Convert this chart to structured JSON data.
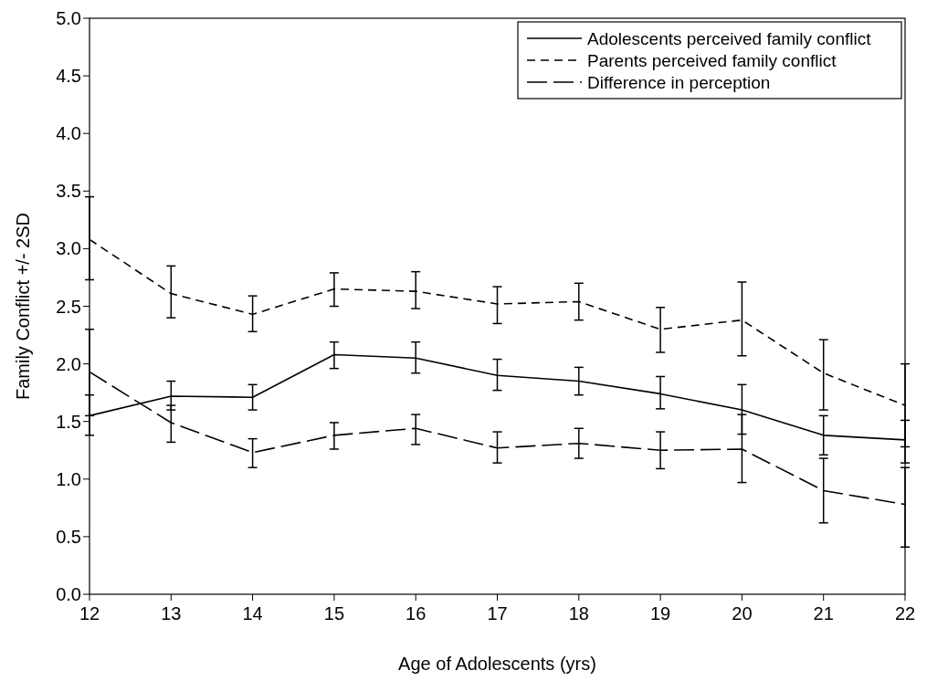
{
  "chart_data": {
    "type": "line",
    "xlabel": "Age of Adolescents (yrs)",
    "ylabel": "Family Conflict +/- 2SD",
    "x": [
      12,
      13,
      14,
      15,
      16,
      17,
      18,
      19,
      20,
      21,
      22
    ],
    "xlim": [
      12,
      22
    ],
    "xticks": [
      12,
      13,
      14,
      15,
      16,
      17,
      18,
      19,
      20,
      21,
      22
    ],
    "ylim": [
      0,
      5
    ],
    "yticks": [
      {
        "value": 0,
        "label": "0.0"
      },
      {
        "value": 0.5,
        "label": "0.5"
      },
      {
        "value": 1,
        "label": "1.0"
      },
      {
        "value": 1.5,
        "label": "1.5"
      },
      {
        "value": 2,
        "label": "2.0"
      },
      {
        "value": 2.5,
        "label": "2.5"
      },
      {
        "value": 3,
        "label": "3.0"
      },
      {
        "value": 3.5,
        "label": "3.5"
      },
      {
        "value": 4,
        "label": "4.0"
      },
      {
        "value": 4.5,
        "label": "4.5"
      },
      {
        "value": 5,
        "label": "5.0"
      }
    ],
    "legend": "top right",
    "marker": "none",
    "series": [
      {
        "name": "Adolescents perceived family conflict",
        "color": "#000000",
        "line_style": "solid",
        "values": [
          1.55,
          1.72,
          1.71,
          2.08,
          2.05,
          1.9,
          1.85,
          1.74,
          1.6,
          1.38,
          1.34
        ],
        "errors": [
          [
            1.38,
            1.73
          ],
          [
            1.6,
            1.85
          ],
          [
            1.6,
            1.82
          ],
          [
            1.96,
            2.19
          ],
          [
            1.92,
            2.19
          ],
          [
            1.77,
            2.04
          ],
          [
            1.73,
            1.97
          ],
          [
            1.61,
            1.89
          ],
          [
            1.39,
            1.82
          ],
          [
            1.21,
            1.55
          ],
          [
            1.14,
            1.51
          ]
        ]
      },
      {
        "name": "Parents perceived family conflict",
        "color": "#000000",
        "line_style": "dashed",
        "values": [
          3.08,
          2.61,
          2.43,
          2.65,
          2.63,
          2.52,
          2.54,
          2.3,
          2.38,
          1.92,
          1.64
        ],
        "errors": [
          [
            2.73,
            3.45
          ],
          [
            2.4,
            2.85
          ],
          [
            2.28,
            2.59
          ],
          [
            2.5,
            2.79
          ],
          [
            2.48,
            2.8
          ],
          [
            2.35,
            2.67
          ],
          [
            2.38,
            2.7
          ],
          [
            2.1,
            2.49
          ],
          [
            2.07,
            2.71
          ],
          [
            1.6,
            2.21
          ],
          [
            1.28,
            2.0
          ]
        ]
      },
      {
        "name": "Difference in perception",
        "color": "#000000",
        "line_style": "longdash",
        "values": [
          1.93,
          1.49,
          1.23,
          1.38,
          1.44,
          1.27,
          1.31,
          1.25,
          1.26,
          0.9,
          0.78
        ],
        "errors": [
          [
            1.55,
            2.3
          ],
          [
            1.32,
            1.64
          ],
          [
            1.1,
            1.35
          ],
          [
            1.26,
            1.49
          ],
          [
            1.3,
            1.56
          ],
          [
            1.14,
            1.41
          ],
          [
            1.18,
            1.44
          ],
          [
            1.09,
            1.41
          ],
          [
            0.97,
            1.56
          ],
          [
            0.62,
            1.18
          ],
          [
            0.41,
            1.1
          ]
        ]
      }
    ]
  }
}
